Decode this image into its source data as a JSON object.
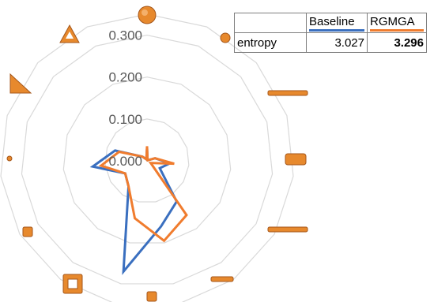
{
  "chart_data": {
    "type": "radar",
    "series": [
      {
        "name": "Baseline",
        "color": "#3a6fbf",
        "values": [
          0.03,
          0.003,
          0.002,
          0.02,
          0.055,
          0.035,
          0.12,
          0.16,
          0.27,
          0.075,
          0.06,
          0.13,
          0.08,
          0.015,
          0.004
        ]
      },
      {
        "name": "RGMGA",
        "color": "#f07c2e",
        "values": [
          0.035,
          0.003,
          0.002,
          0.02,
          0.065,
          0.01,
          0.16,
          0.195,
          0.14,
          0.075,
          0.06,
          0.11,
          0.07,
          0.015,
          0.004
        ]
      }
    ],
    "ticks": [
      "0.000",
      "0.100",
      "0.200",
      "0.300"
    ],
    "rmax": 0.35,
    "grid": true
  },
  "table": {
    "headers": [
      "",
      "Baseline",
      "RGMGA"
    ],
    "row_label": "entropy",
    "baseline_value": "3.027",
    "rgmga_value": "3.296"
  },
  "icons": [
    "sphere",
    "small-sphere",
    "flat-bar",
    "rounded-box",
    "flat-bar",
    "long-flat-bar",
    "small-box",
    "hollow-square",
    "small-box",
    "tiny-dot",
    "triangle",
    "hollow-triangle"
  ],
  "colors": {
    "icon_fill": "#e7892d",
    "icon_stroke": "#a4561a",
    "grid": "#d9d9d9"
  }
}
